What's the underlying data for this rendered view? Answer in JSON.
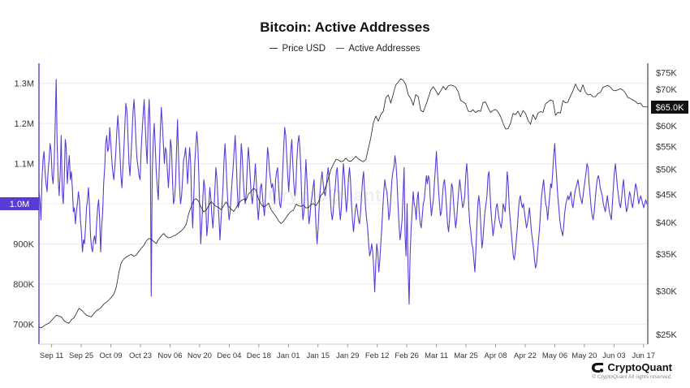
{
  "colors": {
    "addresses": "#5b3bd6",
    "price": "#222222",
    "grid": "#ececec"
  },
  "brand": {
    "name": "CryptoQuant",
    "copyright": "© CryptoQuant All rights reserved.",
    "watermark": "CryptoQuant"
  },
  "chart_data": {
    "type": "line",
    "title": "Bitcoin: Active Addresses",
    "legend": [
      "Price USD",
      "Active Addresses"
    ],
    "legend_placement": "top-center",
    "grid": true,
    "x_ticks": [
      "Sep 11",
      "Sep 25",
      "Oct 09",
      "Oct 23",
      "Nov 06",
      "Nov 20",
      "Dec 04",
      "Dec 18",
      "Jan 01",
      "Jan 15",
      "Jan 29",
      "Feb 12",
      "Feb 26",
      "Mar 11",
      "Mar 25",
      "Apr 08",
      "Apr 22",
      "May 06",
      "May 20",
      "Jun 03",
      "Jun 17"
    ],
    "y_left": {
      "label": "Active Addresses",
      "ticks": [
        700000,
        800000,
        900000,
        1000000,
        1100000,
        1200000,
        1300000
      ],
      "tick_labels": [
        "700K",
        "800K",
        "900K",
        "1M",
        "1.1M",
        "1.2M",
        "1.3M"
      ],
      "range": [
        650000,
        1350000
      ],
      "current_label": "1.0M"
    },
    "y_right": {
      "label": "Price USD",
      "scale": "log",
      "ticks": [
        25000,
        30000,
        35000,
        40000,
        45000,
        50000,
        55000,
        60000,
        65000,
        70000,
        75000
      ],
      "tick_labels": [
        "$25K",
        "$30K",
        "$35K",
        "$40K",
        "$45K",
        "$50K",
        "$55K",
        "$60K",
        "$65K",
        "$70K",
        "$75K"
      ],
      "range": [
        24000,
        78000
      ],
      "current_label": "$65.0K"
    },
    "start_date": "2023-09-05",
    "series": [
      {
        "name": "Active Addresses",
        "values": [
          1030000,
          1010000,
          960000,
          1060000,
          1110000,
          1130000,
          1080000,
          1050000,
          1030000,
          1080000,
          1110000,
          1150000,
          1130000,
          1070000,
          1050000,
          1100000,
          1190000,
          1310000,
          1150000,
          1060000,
          1020000,
          1080000,
          1170000,
          1030000,
          1000000,
          1060000,
          1160000,
          1140000,
          1050000,
          1090000,
          1120000,
          1060000,
          1080000,
          1040000,
          980000,
          990000,
          950000,
          980000,
          1000000,
          1030000,
          1010000,
          960000,
          930000,
          880000,
          910000,
          900000,
          940000,
          990000,
          1010000,
          1040000,
          990000,
          920000,
          890000,
          880000,
          910000,
          920000,
          900000,
          950000,
          990000,
          1010000,
          960000,
          880000,
          940000,
          980000,
          1050000,
          1090000,
          1150000,
          1170000,
          1130000,
          1140000,
          1190000,
          1150000,
          1110000,
          1080000,
          1060000,
          1090000,
          1130000,
          1180000,
          1220000,
          1180000,
          1130000,
          1070000,
          1040000,
          1090000,
          1140000,
          1200000,
          1250000,
          1230000,
          1170000,
          1100000,
          1070000,
          1120000,
          1170000,
          1230000,
          1260000,
          1210000,
          1150000,
          1110000,
          1090000,
          1070000,
          1060000,
          1130000,
          1180000,
          1220000,
          1260000,
          1200000,
          1140000,
          1100000,
          1210000,
          1260000,
          1180000,
          770000,
          1070000,
          1160000,
          1200000,
          1140000,
          1080000,
          1040000,
          1010000,
          1100000,
          1180000,
          1240000,
          1200000,
          1150000,
          1100000,
          1140000,
          1130000,
          1080000,
          1040000,
          1090000,
          1160000,
          1140000,
          1060000,
          1000000,
          1010000,
          1050000,
          1130000,
          1210000,
          1120000,
          1040000,
          1000000,
          1020000,
          1060000,
          1110000,
          1120000,
          1140000,
          1100000,
          1050000,
          1100000,
          1140000,
          1100000,
          1000000,
          940000,
          1010000,
          1100000,
          1140000,
          1180000,
          1150000,
          1080000,
          980000,
          900000,
          950000,
          1010000,
          1060000,
          1040000,
          990000,
          920000,
          950000,
          1000000,
          1040000,
          1010000,
          970000,
          940000,
          980000,
          1040000,
          1090000,
          1060000,
          1010000,
          960000,
          910000,
          960000,
          1000000,
          1040000,
          1110000,
          1150000,
          1100000,
          1040000,
          990000,
          960000,
          980000,
          1020000,
          1060000,
          1090000,
          1130000,
          1170000,
          1120000,
          1040000,
          990000,
          1000000,
          1070000,
          1150000,
          1120000,
          1060000,
          1020000,
          1000000,
          1030000,
          1090000,
          1140000,
          1110000,
          1060000,
          1020000,
          1000000,
          1030000,
          1060000,
          1100000,
          1050000,
          990000,
          960000,
          1000000,
          1040000,
          1050000,
          1020000,
          990000,
          970000,
          1020000,
          1080000,
          1140000,
          1120000,
          1080000,
          1060000,
          1040000,
          1050000,
          1030000,
          1000000,
          1060000,
          1080000,
          1090000,
          1040000,
          1000000,
          990000,
          1020000,
          1080000,
          1140000,
          1190000,
          1170000,
          1120000,
          1070000,
          1030000,
          1080000,
          1130000,
          1160000,
          1100000,
          1050000,
          1020000,
          1040000,
          1110000,
          1150000,
          1170000,
          1140000,
          1080000,
          1000000,
          960000,
          980000,
          1050000,
          1110000,
          1060000,
          1000000,
          950000,
          970000,
          1000000,
          1020000,
          1040000,
          1060000,
          1000000,
          940000,
          900000,
          940000,
          990000,
          1030000,
          1060000,
          1080000,
          1050000,
          1030000,
          1020000,
          1040000,
          1070000,
          1090000,
          1060000,
          1020000,
          980000,
          960000,
          980000,
          1020000,
          1040000,
          1080000,
          1090000,
          1040000,
          990000,
          960000,
          990000,
          1050000,
          1100000,
          1070000,
          1020000,
          980000,
          1010000,
          1060000,
          1090000,
          1060000,
          1000000,
          960000,
          930000,
          960000,
          990000,
          1000000,
          980000,
          960000,
          950000,
          980000,
          1020000,
          1060000,
          1080000,
          1030000,
          990000,
          960000,
          940000,
          900000,
          870000,
          880000,
          900000,
          880000,
          840000,
          780000,
          850000,
          900000,
          880000,
          830000,
          860000,
          900000,
          940000,
          990000,
          1030000,
          1060000,
          1040000,
          1030000,
          1000000,
          960000,
          980000,
          1020000,
          1060000,
          1080000,
          1090000,
          1120000,
          1100000,
          1060000,
          1000000,
          950000,
          910000,
          930000,
          960000,
          1020000,
          1090000,
          920000,
          870000,
          1000000,
          840000,
          750000,
          870000,
          940000,
          980000,
          1030000,
          1000000,
          990000,
          960000,
          1010000,
          1030000,
          980000,
          950000,
          940000,
          970000,
          1000000,
          1010000,
          1040000,
          1070000,
          1050000,
          1070000,
          1060000,
          1010000,
          970000,
          990000,
          1010000,
          1050000,
          1090000,
          1130000,
          1080000,
          1040000,
          1000000,
          970000,
          980000,
          1020000,
          1050000,
          1060000,
          1030000,
          990000,
          950000,
          930000,
          960000,
          1010000,
          1050000,
          1040000,
          1000000,
          970000,
          940000,
          960000,
          1000000,
          1030000,
          1060000,
          1040000,
          1010000,
          990000,
          1000000,
          1020000,
          1070000,
          1100000,
          1060000,
          990000,
          950000,
          930000,
          900000,
          890000,
          860000,
          830000,
          880000,
          950000,
          1000000,
          1020000,
          990000,
          940000,
          890000,
          910000,
          950000,
          980000,
          1000000,
          1020000,
          1070000,
          1080000,
          1030000,
          980000,
          950000,
          920000,
          940000,
          960000,
          990000,
          1000000,
          980000,
          960000,
          950000,
          940000,
          960000,
          1000000,
          990000,
          980000,
          1020000,
          1080000,
          1050000,
          990000,
          960000,
          930000,
          900000,
          870000,
          860000,
          880000,
          910000,
          940000,
          980000,
          1010000,
          1020000,
          1000000,
          990000,
          1000000,
          980000,
          960000,
          940000,
          950000,
          970000,
          990000,
          960000,
          930000,
          910000,
          890000,
          860000,
          840000,
          850000,
          880000,
          910000,
          940000,
          980000,
          1020000,
          1040000,
          1060000,
          1030000,
          1000000,
          990000,
          960000,
          990000,
          1020000,
          1050000,
          1040000,
          1080000,
          1120000,
          1150000,
          1100000,
          1060000,
          1020000,
          990000,
          960000,
          940000,
          930000,
          920000,
          950000,
          980000,
          1000000,
          1010000,
          1020000,
          1010000,
          1020000,
          1030000,
          1000000,
          990000,
          1010000,
          1030000,
          1040000,
          1050000,
          1060000,
          1040000,
          1020000,
          1010000,
          1000000,
          1020000,
          1040000,
          1060000,
          1080000,
          1100000,
          1090000,
          1050000,
          1020000,
          990000,
          970000,
          960000,
          980000,
          1010000,
          1040000,
          1060000,
          1070000,
          1060000,
          1040000,
          1030000,
          1020000,
          1000000,
          990000,
          980000,
          1000000,
          1020000,
          1000000,
          980000,
          970000,
          960000,
          1000000,
          1040000,
          1080000,
          1100000,
          1070000,
          1040000,
          1020000,
          1000000,
          990000,
          1010000,
          1040000,
          1060000,
          1030000,
          1000000,
          980000,
          990000,
          1010000,
          1030000,
          1020000,
          1000000,
          990000,
          1010000,
          1030000,
          1050000,
          1040000,
          1020000,
          1000000,
          1010000,
          1020000,
          1010000,
          1000000,
          990000,
          1000000,
          1010000,
          1000000,
          1000000
        ]
      },
      {
        "name": "Price USD",
        "values": [
          25800,
          25700,
          25900,
          26100,
          26200,
          26500,
          26800,
          27100,
          27000,
          26900,
          26500,
          26300,
          26200,
          26600,
          26800,
          27300,
          27900,
          27700,
          27400,
          27100,
          27000,
          26900,
          27300,
          27600,
          27800,
          28000,
          28400,
          28600,
          28900,
          29200,
          29600,
          30500,
          32400,
          33800,
          34300,
          34600,
          34800,
          35000,
          34700,
          34900,
          35400,
          35900,
          36300,
          37000,
          37400,
          37300,
          36900,
          36600,
          37300,
          37800,
          38200,
          37700,
          37500,
          37600,
          37800,
          38000,
          38300,
          38600,
          39000,
          39700,
          41500,
          42700,
          43900,
          44200,
          43700,
          42600,
          41800,
          42100,
          42900,
          43700,
          43200,
          42800,
          42600,
          42200,
          42900,
          43600,
          42800,
          42300,
          41900,
          42500,
          43400,
          43800,
          44100,
          43900,
          45100,
          45500,
          46200,
          45800,
          44100,
          43200,
          42700,
          42900,
          43400,
          42200,
          41600,
          41000,
          40300,
          39800,
          40200,
          40800,
          41400,
          41900,
          42100,
          43200,
          42900,
          42800,
          43000,
          42500,
          42600,
          43100,
          43300,
          42900,
          43600,
          44800,
          45300,
          46600,
          48200,
          49900,
          51100,
          52100,
          52000,
          51600,
          51800,
          52400,
          51800,
          51700,
          52200,
          52800,
          52200,
          51900,
          51600,
          52100,
          54500,
          57100,
          60700,
          62500,
          61200,
          62900,
          63800,
          67500,
          68300,
          66000,
          68600,
          71200,
          72100,
          73100,
          72600,
          71400,
          68400,
          67300,
          65400,
          68400,
          67800,
          64000,
          63600,
          65400,
          67300,
          69700,
          70700,
          69600,
          68300,
          69500,
          70800,
          69800,
          70900,
          71200,
          71000,
          70600,
          69300,
          66700,
          66400,
          65800,
          63800,
          63700,
          64200,
          63400,
          64000,
          63800,
          66200,
          66300,
          64700,
          63500,
          64000,
          64300,
          63600,
          62400,
          60700,
          59200,
          59300,
          60600,
          63200,
          62900,
          63800,
          62300,
          64000,
          63200,
          61400,
          60400,
          62900,
          61600,
          63300,
          63700,
          63500,
          65800,
          66300,
          66900,
          66600,
          62700,
          63500,
          63300,
          66700,
          66100,
          66300,
          68000,
          69500,
          71500,
          70000,
          69200,
          71300,
          69100,
          68300,
          68500,
          67800,
          67800,
          68700,
          69000,
          70500,
          70800,
          71100,
          70600,
          69700,
          69500,
          69800,
          70100,
          69700,
          68900,
          67600,
          67300,
          66900,
          66500,
          65800,
          66000,
          65100,
          65000,
          64900
        ]
      }
    ]
  }
}
